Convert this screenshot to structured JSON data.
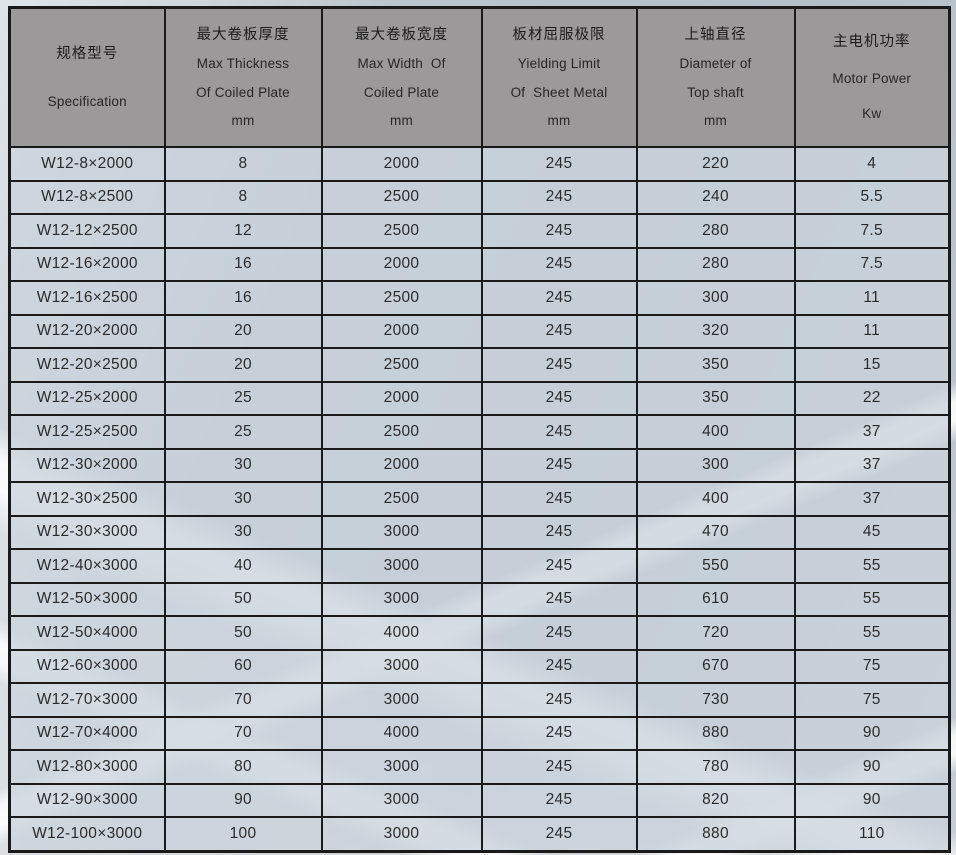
{
  "colors": {
    "header_bg": "#9b9999",
    "cell_bg": "#c8d0d8",
    "grid_border": "#1a1a1a",
    "background_base": "#b5bfc8",
    "beam_highlight": "#ffffff"
  },
  "table": {
    "columns": [
      {
        "zh": "规格型号",
        "en_lines": [
          "Specification"
        ],
        "unit": ""
      },
      {
        "zh": "最大卷板厚度",
        "en_lines": [
          "Max Thickness",
          "Of Coiled Plate"
        ],
        "unit": "mm"
      },
      {
        "zh": "最大卷板宽度",
        "en_lines": [
          "Max Width  Of",
          "Coiled Plate"
        ],
        "unit": "mm"
      },
      {
        "zh": "板材屈服极限",
        "en_lines": [
          "Yielding Limit",
          "Of  Sheet Metal"
        ],
        "unit": "mm"
      },
      {
        "zh": "上轴直径",
        "en_lines": [
          "Diameter of",
          "Top shaft"
        ],
        "unit": "mm"
      },
      {
        "zh": "主电机功率",
        "en_lines": [
          "Motor Power"
        ],
        "unit": "Kw"
      }
    ],
    "rows": [
      [
        "W12-8×2000",
        "8",
        "2000",
        "245",
        "220",
        "4"
      ],
      [
        "W12-8×2500",
        "8",
        "2500",
        "245",
        "240",
        "5.5"
      ],
      [
        "W12-12×2500",
        "12",
        "2500",
        "245",
        "280",
        "7.5"
      ],
      [
        "W12-16×2000",
        "16",
        "2000",
        "245",
        "280",
        "7.5"
      ],
      [
        "W12-16×2500",
        "16",
        "2500",
        "245",
        "300",
        "11"
      ],
      [
        "W12-20×2000",
        "20",
        "2000",
        "245",
        "320",
        "11"
      ],
      [
        "W12-20×2500",
        "20",
        "2500",
        "245",
        "350",
        "15"
      ],
      [
        "W12-25×2000",
        "25",
        "2000",
        "245",
        "350",
        "22"
      ],
      [
        "W12-25×2500",
        "25",
        "2500",
        "245",
        "400",
        "37"
      ],
      [
        "W12-30×2000",
        "30",
        "2000",
        "245",
        "300",
        "37"
      ],
      [
        "W12-30×2500",
        "30",
        "2500",
        "245",
        "400",
        "37"
      ],
      [
        "W12-30×3000",
        "30",
        "3000",
        "245",
        "470",
        "45"
      ],
      [
        "W12-40×3000",
        "40",
        "3000",
        "245",
        "550",
        "55"
      ],
      [
        "W12-50×3000",
        "50",
        "3000",
        "245",
        "610",
        "55"
      ],
      [
        "W12-50×4000",
        "50",
        "4000",
        "245",
        "720",
        "55"
      ],
      [
        "W12-60×3000",
        "60",
        "3000",
        "245",
        "670",
        "75"
      ],
      [
        "W12-70×3000",
        "70",
        "3000",
        "245",
        "730",
        "75"
      ],
      [
        "W12-70×4000",
        "70",
        "4000",
        "245",
        "880",
        "90"
      ],
      [
        "W12-80×3000",
        "80",
        "3000",
        "245",
        "780",
        "90"
      ],
      [
        "W12-90×3000",
        "90",
        "3000",
        "245",
        "820",
        "90"
      ],
      [
        "W12-100×3000",
        "100",
        "3000",
        "245",
        "880",
        "110"
      ]
    ]
  }
}
